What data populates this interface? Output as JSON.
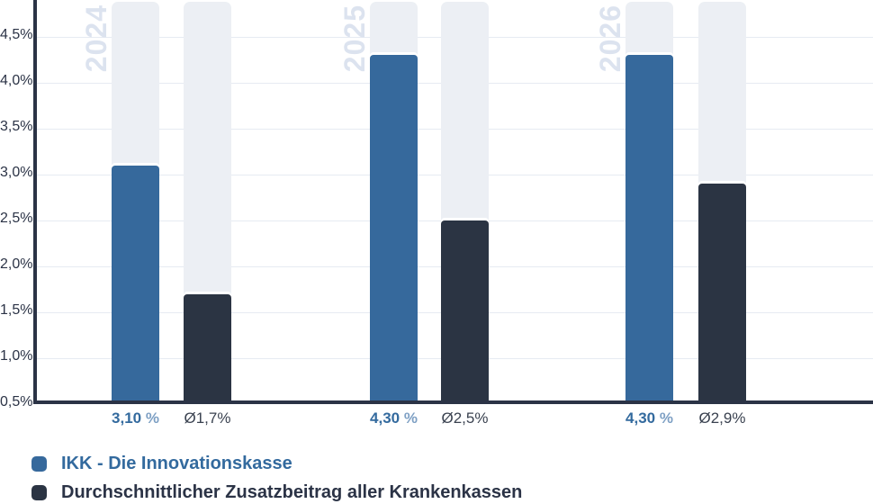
{
  "chart_data": {
    "type": "bar",
    "title": "",
    "categories": [
      "2024",
      "2025",
      "2026"
    ],
    "series": [
      {
        "key": "ikk",
        "name": "IKK - Die Innovationskasse",
        "color": "#36699C",
        "values": [
          3.1,
          4.3,
          4.3
        ],
        "value_labels": [
          "3,10",
          "4,30",
          "4,30"
        ],
        "value_label_suffix": " %"
      },
      {
        "key": "average",
        "name": "Durchschnittlicher Zusatzbeitrag aller Krankenkassen",
        "color": "#2B3443",
        "values": [
          1.7,
          2.5,
          2.9
        ],
        "value_labels": [
          "Ø1,7%",
          "Ø2,5%",
          "Ø2,9%"
        ]
      }
    ],
    "xlabel": "",
    "ylabel": "",
    "y_ticks": [
      "4,5%",
      "4,0%",
      "3,5%",
      "3,0%",
      "2,5%",
      "2,0%",
      "1,5%",
      "1,0%",
      "0,5%"
    ],
    "ylim": [
      0.5,
      4.9
    ],
    "grid": true,
    "legend_position": "bottom-left",
    "colors": {
      "bar_track": "#ECEFF4",
      "gridline": "#E6EBF2",
      "axis": "#2B3346",
      "tick_label": "#2B3346",
      "year_watermark": "#DCE3EF",
      "value_label_ikk": "#336A9E",
      "value_label_suffix": "#7EA0C4",
      "value_label_average": "#3A4250",
      "legend_label_ikk": "#336A9E",
      "legend_label_average": "#2B3346"
    }
  }
}
